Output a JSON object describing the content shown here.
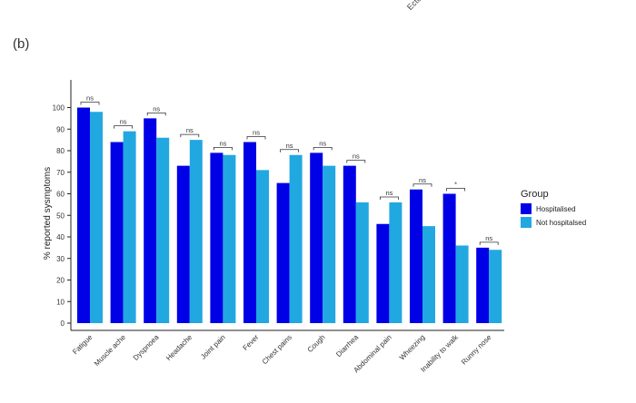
{
  "panel_label": "(b)",
  "top_fragment": "Ecto",
  "colors": {
    "hospitalised": "#0000e6",
    "not_hospitalised": "#22a8e0",
    "axis": "#222222"
  },
  "chart_data": {
    "type": "bar",
    "title": "",
    "xlabel": "",
    "ylabel": "% reported sysmptoms",
    "ylim": [
      0,
      104
    ],
    "yticks": [
      0,
      10,
      20,
      30,
      40,
      50,
      60,
      70,
      80,
      90,
      100
    ],
    "grid": false,
    "legend": {
      "title": "Group",
      "placement": "right"
    },
    "categories": [
      "Fatigue",
      "Muscle ache",
      "Dyspnoea",
      "Headache",
      "Joint pain",
      "Fever",
      "Chest pains",
      "Cough",
      "Diarrhea",
      "Abdominal pain",
      "Wheezing",
      "Inability to walk",
      "Runny nose"
    ],
    "series": [
      {
        "name": "Hospitalised",
        "values": [
          100,
          84,
          95,
          73,
          79,
          84,
          65,
          79,
          73,
          46,
          62,
          60,
          35
        ]
      },
      {
        "name": "Not hospitalsed",
        "values": [
          98,
          89,
          86,
          85,
          78,
          71,
          78,
          73,
          56,
          56,
          45,
          36,
          34
        ]
      }
    ],
    "significance": [
      "ns",
      "ns",
      "ns",
      "ns",
      "ns",
      "ns",
      "ns",
      "ns",
      "ns",
      "ns",
      "ns",
      "*",
      "ns"
    ]
  }
}
